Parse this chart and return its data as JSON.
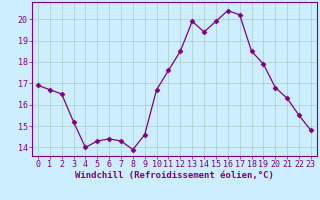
{
  "x": [
    0,
    1,
    2,
    3,
    4,
    5,
    6,
    7,
    8,
    9,
    10,
    11,
    12,
    13,
    14,
    15,
    16,
    17,
    18,
    19,
    20,
    21,
    22,
    23
  ],
  "y": [
    16.9,
    16.7,
    16.5,
    15.2,
    14.0,
    14.3,
    14.4,
    14.3,
    13.9,
    14.6,
    16.7,
    17.6,
    18.5,
    19.9,
    19.4,
    19.9,
    20.4,
    20.2,
    18.5,
    17.9,
    16.8,
    16.3,
    15.5,
    14.8
  ],
  "line_color": "#800080",
  "marker": "D",
  "markersize": 2.5,
  "linewidth": 0.9,
  "bg_color": "#cceeff",
  "grid_color": "#aacccc",
  "xlabel": "Windchill (Refroidissement éolien,°C)",
  "xlabel_fontsize": 6.5,
  "yticks": [
    14,
    15,
    16,
    17,
    18,
    19,
    20
  ],
  "xticks": [
    0,
    1,
    2,
    3,
    4,
    5,
    6,
    7,
    8,
    9,
    10,
    11,
    12,
    13,
    14,
    15,
    16,
    17,
    18,
    19,
    20,
    21,
    22,
    23
  ],
  "ylim": [
    13.6,
    20.8
  ],
  "xlim": [
    -0.5,
    23.5
  ],
  "tick_fontsize": 6,
  "tick_color": "#800080",
  "spine_color": "#800080"
}
